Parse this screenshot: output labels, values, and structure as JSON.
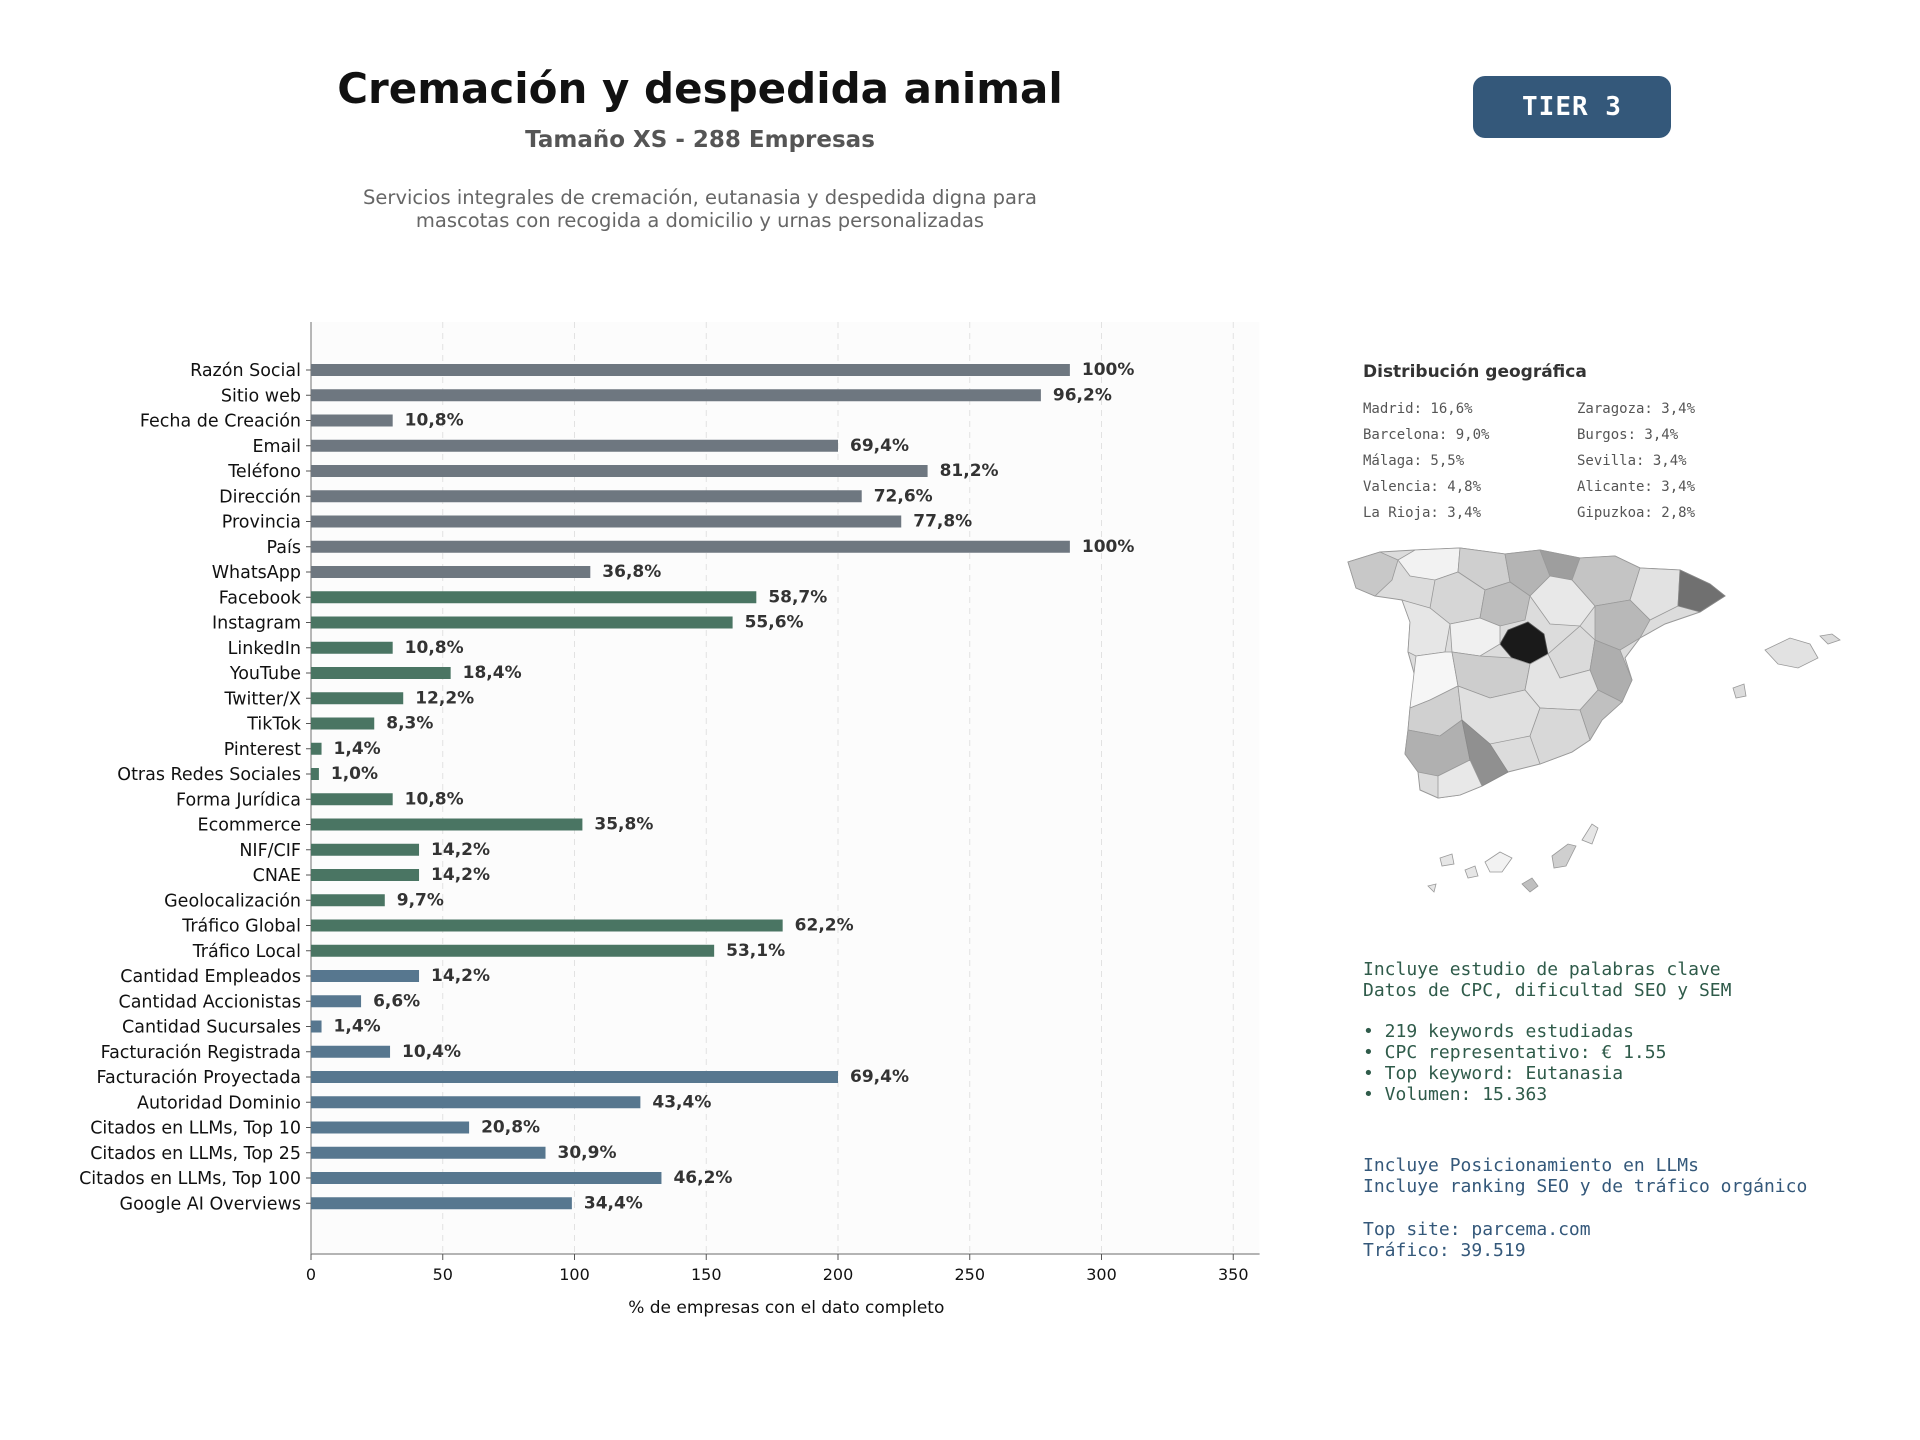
{
  "header": {
    "title": "Cremación y despedida animal",
    "subtitle": "Tamaño XS - 288 Empresas",
    "description_lines": [
      "Servicios integrales de cremación, eutanasia y despedida digna para",
      "mascotas con recogida a domicilio y urnas personalizadas"
    ],
    "tier_badge": "TIER 3"
  },
  "chart_data": {
    "type": "bar",
    "orientation": "horizontal",
    "xlabel": "% de empresas con el dato completo",
    "xlim": [
      0,
      360
    ],
    "xticks": [
      0,
      50,
      100,
      150,
      200,
      250,
      300,
      350
    ],
    "grid": true,
    "categories": [
      "Razón Social",
      "Sitio web",
      "Fecha de Creación",
      "Email",
      "Teléfono",
      "Dirección",
      "Provincia",
      "País",
      "WhatsApp",
      "Facebook",
      "Instagram",
      "LinkedIn",
      "YouTube",
      "Twitter/X",
      "TikTok",
      "Pinterest",
      "Otras Redes Sociales",
      "Forma Jurídica",
      "Ecommerce",
      "NIF/CIF",
      "CNAE",
      "Geolocalización",
      "Tráfico Global",
      "Tráfico Local",
      "Cantidad Empleados",
      "Cantidad Accionistas",
      "Cantidad Sucursales",
      "Facturación Registrada",
      "Facturación Proyectada",
      "Autoridad Dominio",
      "Citados en LLMs, Top 10",
      "Citados en LLMs, Top 25",
      "Citados en LLMs, Top 100",
      "Google AI Overviews"
    ],
    "values": [
      288,
      277,
      31,
      200,
      234,
      209,
      224,
      288,
      106,
      169,
      160,
      31,
      53,
      35,
      24,
      4,
      3,
      31,
      103,
      41,
      41,
      28,
      179,
      153,
      41,
      19,
      4,
      30,
      200,
      125,
      60,
      89,
      133,
      99
    ],
    "labels": [
      "100%",
      "96,2%",
      "10,8%",
      "69,4%",
      "81,2%",
      "72,6%",
      "77,8%",
      "100%",
      "36,8%",
      "58,7%",
      "55,6%",
      "10,8%",
      "18,4%",
      "12,2%",
      "8,3%",
      "1,4%",
      "1,0%",
      "10,8%",
      "35,8%",
      "14,2%",
      "14,2%",
      "9,7%",
      "62,2%",
      "53,1%",
      "14,2%",
      "6,6%",
      "1,4%",
      "10,4%",
      "69,4%",
      "43,4%",
      "20,8%",
      "30,9%",
      "46,2%",
      "34,4%"
    ],
    "groups": [
      0,
      0,
      0,
      0,
      0,
      0,
      0,
      0,
      0,
      1,
      1,
      1,
      1,
      1,
      1,
      1,
      1,
      1,
      1,
      1,
      1,
      1,
      1,
      1,
      2,
      2,
      2,
      2,
      2,
      2,
      2,
      2,
      2,
      2
    ],
    "group_colors": [
      "#6e7780",
      "#4a7563",
      "#57778f"
    ]
  },
  "geo": {
    "title": "Distribución geográfica",
    "left": [
      "Madrid: 16,6%",
      "Barcelona: 9,0%",
      "Málaga: 5,5%",
      "Valencia: 4,8%",
      "La Rioja: 3,4%"
    ],
    "right": [
      "Zaragoza: 3,4%",
      "Burgos: 3,4%",
      "Sevilla: 3,4%",
      "Alicante: 3,4%",
      "Gipuzkoa: 2,8%"
    ]
  },
  "keywords": {
    "lines": [
      "Incluye estudio de palabras clave",
      "Datos de CPC, dificultad SEO y SEM"
    ],
    "bullets": [
      "• 219 keywords estudiadas",
      "• CPC representativo: € 1.55",
      "• Top keyword: Eutanasia",
      "• Volumen: 15.363"
    ],
    "color": "#2f5b4a"
  },
  "llm": {
    "lines": [
      "Incluye Posicionamiento en LLMs",
      "Incluye ranking SEO y de tráfico orgánico"
    ],
    "site": [
      "Top site: parcema.com",
      "Tráfico: 39.519"
    ],
    "color": "#34587a"
  }
}
